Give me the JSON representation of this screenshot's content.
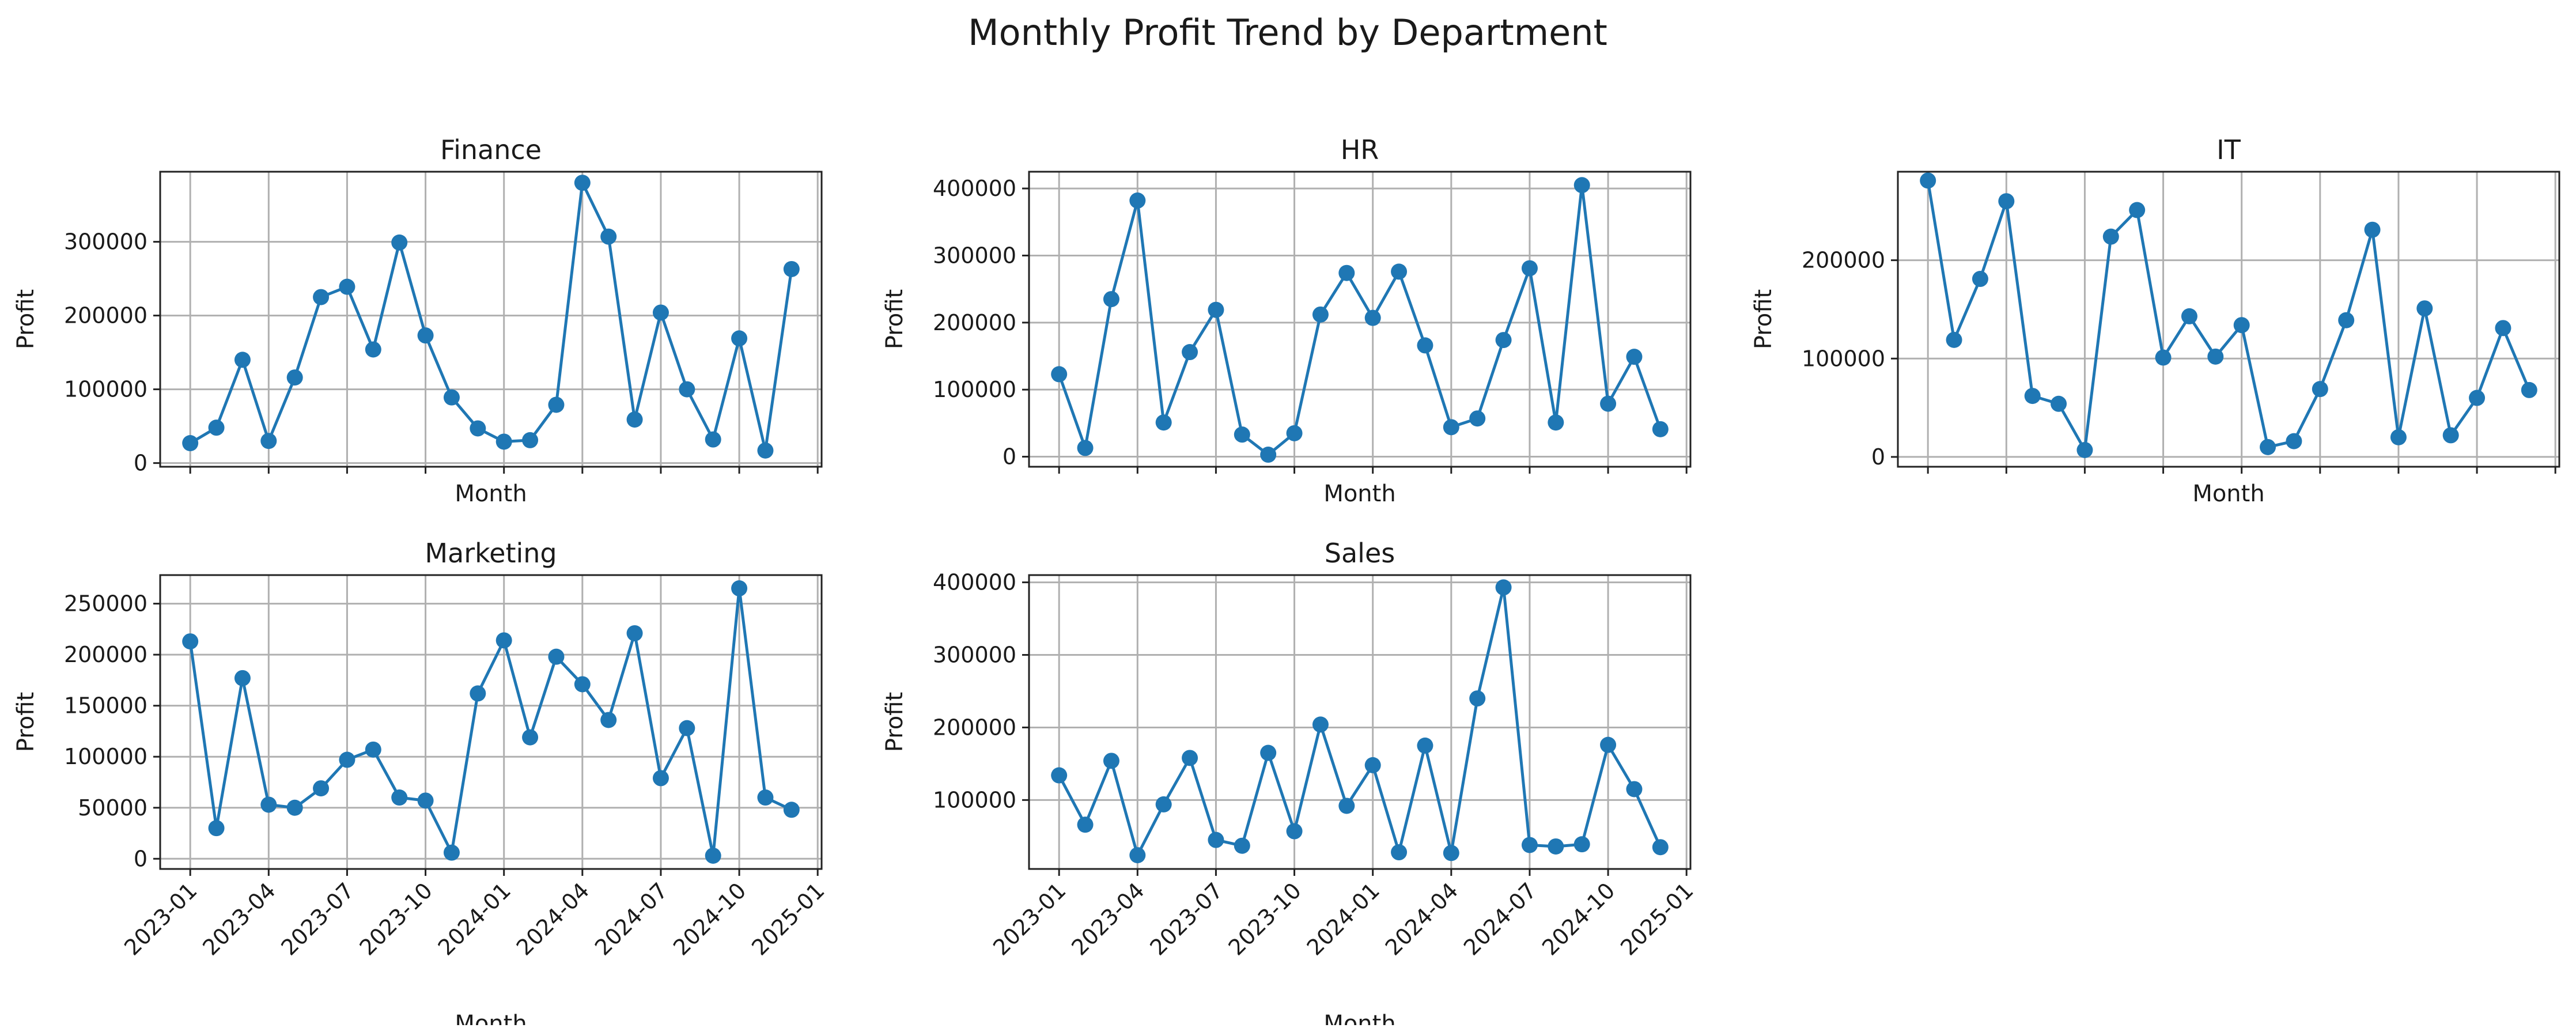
{
  "figure_title": "Monthly Profit Trend by Department",
  "colors": {
    "line": "#1f77b4",
    "marker": "#1f77b4",
    "grid": "#b0b0b0"
  },
  "date_ticks": [
    "2023-01",
    "2023-04",
    "2023-07",
    "2023-10",
    "2024-01",
    "2024-04",
    "2024-07",
    "2024-10",
    "2025-01"
  ],
  "chart_data": [
    {
      "type": "line",
      "title": "Finance",
      "xlabel": "Month",
      "ylabel": "Profit",
      "ylim": [
        -5000,
        395000
      ],
      "yticks": [
        0,
        100000,
        200000,
        300000
      ],
      "grid": true,
      "marker": "circle",
      "x": [
        "2023-01",
        "2023-02",
        "2023-03",
        "2023-04",
        "2023-05",
        "2023-06",
        "2023-07",
        "2023-08",
        "2023-09",
        "2023-10",
        "2023-11",
        "2023-12",
        "2024-01",
        "2024-02",
        "2024-03",
        "2024-04",
        "2024-05",
        "2024-06",
        "2024-07",
        "2024-08",
        "2024-09",
        "2024-10",
        "2024-11",
        "2024-12"
      ],
      "values": [
        27000,
        48000,
        140000,
        30000,
        116000,
        225000,
        239000,
        154000,
        299000,
        173000,
        89000,
        47000,
        29000,
        31000,
        79000,
        380000,
        307000,
        59000,
        204000,
        100000,
        32000,
        169000,
        17000,
        263000
      ]
    },
    {
      "type": "line",
      "title": "HR",
      "xlabel": "Month",
      "ylabel": "Profit",
      "ylim": [
        -15000,
        425000
      ],
      "yticks": [
        0,
        100000,
        200000,
        300000,
        400000
      ],
      "grid": true,
      "marker": "circle",
      "x": [
        "2023-01",
        "2023-02",
        "2023-03",
        "2023-04",
        "2023-05",
        "2023-06",
        "2023-07",
        "2023-08",
        "2023-09",
        "2023-10",
        "2023-11",
        "2023-12",
        "2024-01",
        "2024-02",
        "2024-03",
        "2024-04",
        "2024-05",
        "2024-06",
        "2024-07",
        "2024-08",
        "2024-09",
        "2024-10",
        "2024-11",
        "2024-12"
      ],
      "values": [
        123000,
        13000,
        235000,
        382000,
        51000,
        156000,
        219000,
        33000,
        3000,
        35000,
        212000,
        274000,
        207000,
        276000,
        166000,
        44000,
        57000,
        174000,
        281000,
        51000,
        405000,
        79000,
        149000,
        41000
      ]
    },
    {
      "type": "line",
      "title": "IT",
      "xlabel": "Month",
      "ylabel": "Profit",
      "ylim": [
        -10000,
        290000
      ],
      "yticks": [
        0,
        100000,
        200000
      ],
      "grid": true,
      "marker": "circle",
      "x": [
        "2023-01",
        "2023-02",
        "2023-03",
        "2023-04",
        "2023-05",
        "2023-06",
        "2023-07",
        "2023-08",
        "2023-09",
        "2023-10",
        "2023-11",
        "2023-12",
        "2024-01",
        "2024-02",
        "2024-03",
        "2024-04",
        "2024-05",
        "2024-06",
        "2024-07",
        "2024-08",
        "2024-09",
        "2024-10",
        "2024-11",
        "2024-12"
      ],
      "values": [
        281000,
        119000,
        181000,
        260000,
        62000,
        54000,
        7000,
        224000,
        251000,
        101000,
        143000,
        102000,
        134000,
        10000,
        16000,
        69000,
        139000,
        231000,
        20000,
        151000,
        22000,
        60000,
        131000,
        68000
      ]
    },
    {
      "type": "line",
      "title": "Marketing",
      "xlabel": "Month",
      "ylabel": "Profit",
      "ylim": [
        -10000,
        278000
      ],
      "yticks": [
        0,
        50000,
        100000,
        150000,
        200000,
        250000
      ],
      "grid": true,
      "marker": "circle",
      "x": [
        "2023-01",
        "2023-02",
        "2023-03",
        "2023-04",
        "2023-05",
        "2023-06",
        "2023-07",
        "2023-08",
        "2023-09",
        "2023-10",
        "2023-11",
        "2023-12",
        "2024-01",
        "2024-02",
        "2024-03",
        "2024-04",
        "2024-05",
        "2024-06",
        "2024-07",
        "2024-08",
        "2024-09",
        "2024-10",
        "2024-11",
        "2024-12"
      ],
      "values": [
        213000,
        30000,
        177000,
        53000,
        50000,
        69000,
        97000,
        107000,
        60000,
        57000,
        6000,
        162000,
        214000,
        119000,
        198000,
        171000,
        136000,
        221000,
        79000,
        128000,
        3000,
        265000,
        60000,
        48000
      ]
    },
    {
      "type": "line",
      "title": "Sales",
      "xlabel": "Month",
      "ylabel": "Profit",
      "ylim": [
        5000,
        410000
      ],
      "yticks": [
        100000,
        200000,
        300000,
        400000
      ],
      "grid": true,
      "marker": "circle",
      "x": [
        "2023-01",
        "2023-02",
        "2023-03",
        "2023-04",
        "2023-05",
        "2023-06",
        "2023-07",
        "2023-08",
        "2023-09",
        "2023-10",
        "2023-11",
        "2023-12",
        "2024-01",
        "2024-02",
        "2024-03",
        "2024-04",
        "2024-05",
        "2024-06",
        "2024-07",
        "2024-08",
        "2024-09",
        "2024-10",
        "2024-11",
        "2024-12"
      ],
      "values": [
        134000,
        66000,
        154000,
        24000,
        94000,
        158000,
        45000,
        37000,
        165000,
        57000,
        204000,
        92000,
        148000,
        28000,
        175000,
        27000,
        240000,
        393000,
        38000,
        36000,
        39000,
        176000,
        115000,
        35000
      ]
    }
  ]
}
